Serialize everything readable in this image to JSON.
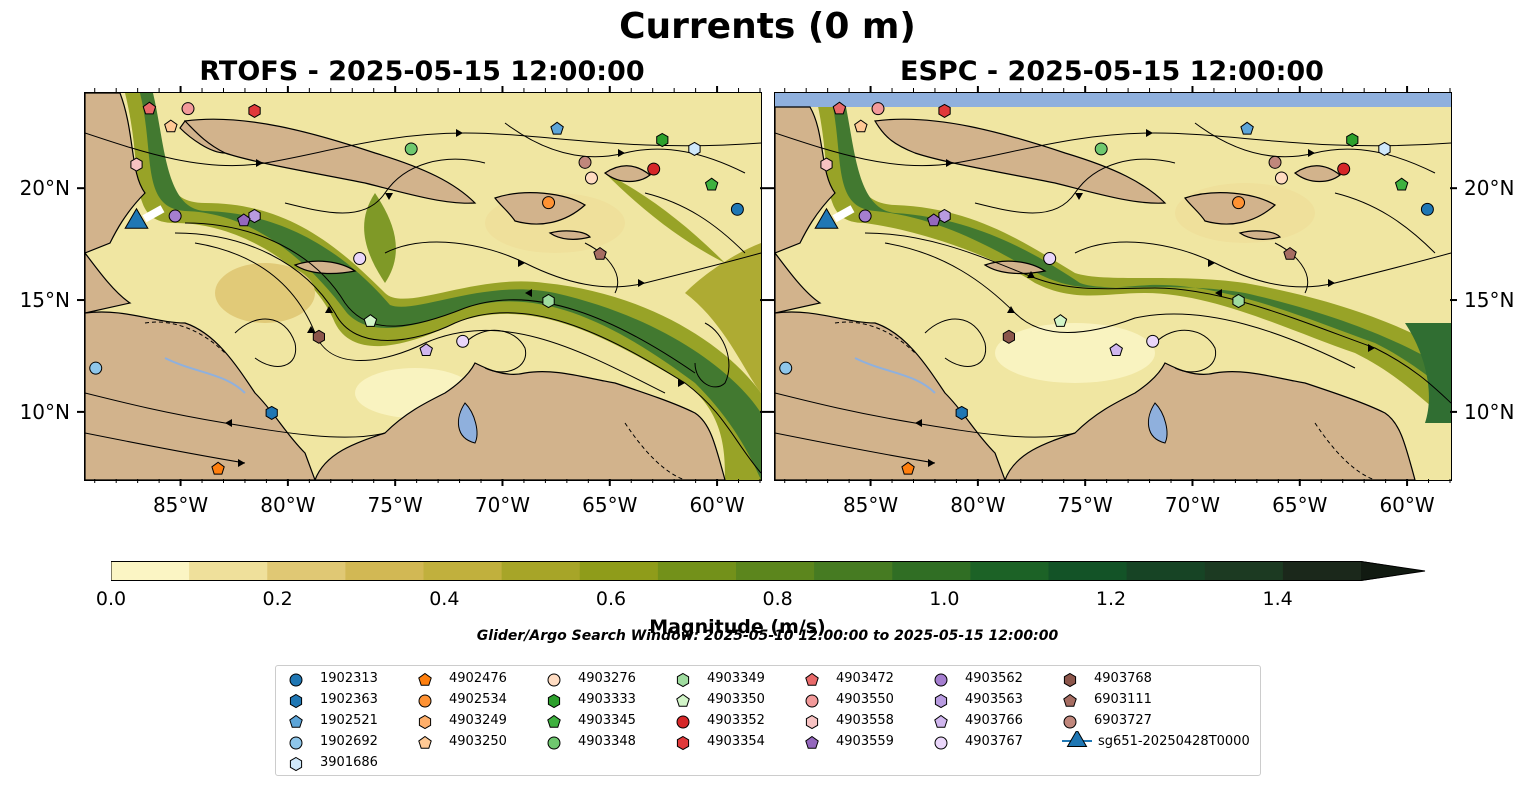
{
  "figure": {
    "title": "Currents (0 m)",
    "panels": [
      {
        "title": "RTOFS - 2025-05-15 12:00:00"
      },
      {
        "title": "ESPC - 2025-05-15 12:00:00"
      }
    ],
    "lon_ticks": [
      "85°W",
      "80°W",
      "75°W",
      "70°W",
      "65°W",
      "60°W"
    ],
    "lat_ticks": [
      "20°N",
      "15°N",
      "10°N"
    ],
    "lon_range": [
      -89.5,
      -58.0
    ],
    "lat_range": [
      7.0,
      24.3
    ],
    "colorbar": {
      "label": "Magnitude (m/s)",
      "ticks": [
        "0.0",
        "0.2",
        "0.4",
        "0.6",
        "0.8",
        "1.0",
        "1.2",
        "1.4"
      ],
      "range": [
        0.0,
        1.5
      ],
      "colors": [
        "#fbf5c4",
        "#efe09b",
        "#e0c874",
        "#d2b854",
        "#c1b03d",
        "#a7a528",
        "#8f9c1a",
        "#73911a",
        "#5c861d",
        "#467b22",
        "#306e24",
        "#1c6226",
        "#135327",
        "#174425",
        "#1c3a22",
        "#1b281b"
      ]
    },
    "search_window": "Glider/Argo Search Window: 2025-05-10 12:00:00 to 2025-05-15 12:00:00",
    "colors": {
      "land": "#d2b38c",
      "water_body": "#8fb0dd",
      "track_marker": "#1f77b4"
    }
  },
  "legend": [
    {
      "id": "1902313",
      "shape": "circle",
      "color": "#1f77b4"
    },
    {
      "id": "1902363",
      "shape": "hexagon",
      "color": "#1f77b4"
    },
    {
      "id": "1902521",
      "shape": "pentagon",
      "color": "#5da5d8"
    },
    {
      "id": "1902692",
      "shape": "circle",
      "color": "#8ec6ea"
    },
    {
      "id": "3901686",
      "shape": "hexagon",
      "color": "#cfe8fa"
    },
    {
      "id": "4902476",
      "shape": "pentagon",
      "color": "#ff7f0e"
    },
    {
      "id": "4902534",
      "shape": "circle",
      "color": "#ff9233"
    },
    {
      "id": "4903249",
      "shape": "hexagon",
      "color": "#ffaf6a"
    },
    {
      "id": "4903250",
      "shape": "pentagon",
      "color": "#ffc995"
    },
    {
      "id": "4903276",
      "shape": "circle",
      "color": "#ffdcc2"
    },
    {
      "id": "4903333",
      "shape": "hexagon",
      "color": "#2ca02c"
    },
    {
      "id": "4903345",
      "shape": "pentagon",
      "color": "#3fb13f"
    },
    {
      "id": "4903348",
      "shape": "circle",
      "color": "#6fc86f"
    },
    {
      "id": "4903349",
      "shape": "hexagon",
      "color": "#9fdc9f"
    },
    {
      "id": "4903350",
      "shape": "pentagon",
      "color": "#d2f5c8"
    },
    {
      "id": "4903352",
      "shape": "circle",
      "color": "#d62728"
    },
    {
      "id": "4903354",
      "shape": "hexagon",
      "color": "#e0393a"
    },
    {
      "id": "4903472",
      "shape": "pentagon",
      "color": "#e96a6a"
    },
    {
      "id": "4903550",
      "shape": "circle",
      "color": "#f29a9a"
    },
    {
      "id": "4903558",
      "shape": "hexagon",
      "color": "#f7c2c2"
    },
    {
      "id": "4903559",
      "shape": "pentagon",
      "color": "#9467bd"
    },
    {
      "id": "4903562",
      "shape": "circle",
      "color": "#a57ed0"
    },
    {
      "id": "4903563",
      "shape": "hexagon",
      "color": "#b89be0"
    },
    {
      "id": "4903766",
      "shape": "pentagon",
      "color": "#d0b6ee"
    },
    {
      "id": "4903767",
      "shape": "circle",
      "color": "#ead6fa"
    },
    {
      "id": "4903768",
      "shape": "hexagon",
      "color": "#8c564b"
    },
    {
      "id": "6903111",
      "shape": "pentagon",
      "color": "#a66d62"
    },
    {
      "id": "6903727",
      "shape": "circle",
      "color": "#c0877c"
    },
    {
      "id": "sg651-20250428T0000",
      "shape": "triangle",
      "color": "#1f77b4"
    }
  ],
  "floats": [
    {
      "id": "4903472",
      "lon": -86.5,
      "lat": 23.6
    },
    {
      "id": "4903550",
      "lon": -84.7,
      "lat": 23.6
    },
    {
      "id": "4903354",
      "lon": -81.6,
      "lat": 23.5
    },
    {
      "id": "4903250",
      "lon": -85.5,
      "lat": 22.8
    },
    {
      "id": "4903558",
      "lon": -87.1,
      "lat": 21.1
    },
    {
      "id": "1902521",
      "lon": -67.5,
      "lat": 22.7
    },
    {
      "id": "4903333",
      "lon": -62.6,
      "lat": 22.2
    },
    {
      "id": "4903348",
      "lon": -74.3,
      "lat": 21.8
    },
    {
      "id": "3901686",
      "lon": -61.1,
      "lat": 21.8
    },
    {
      "id": "6903727",
      "lon": -66.2,
      "lat": 21.2
    },
    {
      "id": "4903352",
      "lon": -63.0,
      "lat": 20.9
    },
    {
      "id": "4903276",
      "lon": -65.9,
      "lat": 20.5
    },
    {
      "id": "4903345",
      "lon": -60.3,
      "lat": 20.2
    },
    {
      "id": "4902534",
      "lon": -67.9,
      "lat": 19.4
    },
    {
      "id": "1902313",
      "lon": -59.1,
      "lat": 19.1
    },
    {
      "id": "4903562",
      "lon": -85.3,
      "lat": 18.8
    },
    {
      "id": "4903563",
      "lon": -81.6,
      "lat": 18.8
    },
    {
      "id": "4903559",
      "lon": -82.1,
      "lat": 18.6
    },
    {
      "id": "4903767_b",
      "lon": -76.7,
      "lat": 16.9
    },
    {
      "id": "6903111",
      "lon": -65.5,
      "lat": 17.1
    },
    {
      "id": "4903349",
      "lon": -67.9,
      "lat": 15.0
    },
    {
      "id": "4903350",
      "lon": -76.2,
      "lat": 14.1
    },
    {
      "id": "4903768",
      "lon": -78.6,
      "lat": 13.4
    },
    {
      "id": "4903766",
      "lon": -73.6,
      "lat": 12.8
    },
    {
      "id": "4903767",
      "lon": -71.9,
      "lat": 13.2
    },
    {
      "id": "1902692",
      "lon": -89.0,
      "lat": 12.0
    },
    {
      "id": "1902363",
      "lon": -80.8,
      "lat": 10.0
    },
    {
      "id": "4902476",
      "lon": -83.3,
      "lat": 7.5
    }
  ],
  "glider": {
    "id": "sg651-20250428T0000",
    "lon": -87.1,
    "lat": 18.5
  }
}
